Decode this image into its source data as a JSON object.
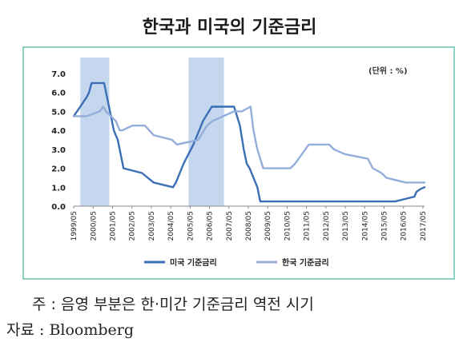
{
  "title": "한국과 미국의 기준금리",
  "unit_note": "(단위 : %)",
  "footnote": "주 : 음영 부분은 한·미간 기준금리 역전 시기",
  "source": "자료 : Bloomberg",
  "colors": {
    "us_line": "#3a6fb5",
    "kr_line": "#93aedb",
    "shade": "#c5d7ef",
    "frame": "#8fd0c4"
  },
  "chart_data": {
    "type": "line",
    "title": "한국과 미국의 기준금리",
    "xlabel": "",
    "ylabel": "",
    "ylim": [
      0,
      7
    ],
    "xlim": [
      1999.33,
      2017.42
    ],
    "y_ticks": [
      "0.0",
      "1.0",
      "2.0",
      "3.0",
      "4.0",
      "5.0",
      "6.0",
      "7.0"
    ],
    "x_tick_labels": [
      "1999/05",
      "2000/05",
      "2001/05",
      "2002/05",
      "2003/05",
      "2004/05",
      "2005/05",
      "2006/05",
      "2007/05",
      "2008/05",
      "2009/05",
      "2010/05",
      "2011/05",
      "2012/05",
      "2013/05",
      "2014/05",
      "2015/05",
      "2016/05",
      "2017/05"
    ],
    "legend_position": "bottom",
    "grid": false,
    "shaded_periods": [
      {
        "start": 1999.67,
        "end": 2001.17
      },
      {
        "start": 2005.25,
        "end": 2007.08
      }
    ],
    "series": [
      {
        "name": "미국 기준금리",
        "x": [
          1999.33,
          1999.5,
          1999.67,
          1999.83,
          2000.0,
          2000.12,
          2000.25,
          2000.37,
          2000.9,
          2001.0,
          2001.1,
          2001.2,
          2001.3,
          2001.4,
          2001.5,
          2001.6,
          2001.7,
          2001.8,
          2001.9,
          2002.85,
          2003.45,
          2004.45,
          2004.6,
          2005.0,
          2005.5,
          2006.0,
          2006.45,
          2007.6,
          2007.75,
          2007.9,
          2008.1,
          2008.25,
          2008.4,
          2008.8,
          2008.95,
          2015.9,
          2016.9,
          2017.0,
          2017.2,
          2017.42
        ],
        "y": [
          4.75,
          5.0,
          5.25,
          5.5,
          5.75,
          6.0,
          6.5,
          6.5,
          6.5,
          6.0,
          5.5,
          5.0,
          4.5,
          4.0,
          3.75,
          3.5,
          3.0,
          2.5,
          2.0,
          1.75,
          1.25,
          1.0,
          1.25,
          2.25,
          3.25,
          4.5,
          5.25,
          5.25,
          4.75,
          4.25,
          3.0,
          2.25,
          2.0,
          1.0,
          0.25,
          0.25,
          0.5,
          0.75,
          0.9,
          1.0
        ]
      },
      {
        "name": "한국 기준금리",
        "x": [
          1999.33,
          2000.0,
          2000.67,
          2000.85,
          2001.0,
          2001.5,
          2001.7,
          2001.85,
          2002.35,
          2003.0,
          2003.45,
          2004.4,
          2004.65,
          2005.75,
          2006.2,
          2006.5,
          2007.6,
          2008.0,
          2008.45,
          2008.6,
          2008.8,
          2008.95,
          2009.1,
          2010.5,
          2010.75,
          2011.1,
          2011.45,
          2012.5,
          2012.75,
          2013.3,
          2014.5,
          2014.75,
          2015.2,
          2015.45,
          2016.45,
          2017.42
        ],
        "y": [
          4.75,
          4.75,
          5.0,
          5.25,
          5.0,
          4.5,
          4.0,
          4.0,
          4.25,
          4.25,
          3.75,
          3.5,
          3.25,
          3.5,
          4.25,
          4.5,
          5.0,
          5.0,
          5.25,
          4.0,
          3.0,
          2.5,
          2.0,
          2.0,
          2.25,
          2.75,
          3.25,
          3.25,
          3.0,
          2.75,
          2.5,
          2.0,
          1.75,
          1.5,
          1.25,
          1.25
        ]
      }
    ]
  }
}
